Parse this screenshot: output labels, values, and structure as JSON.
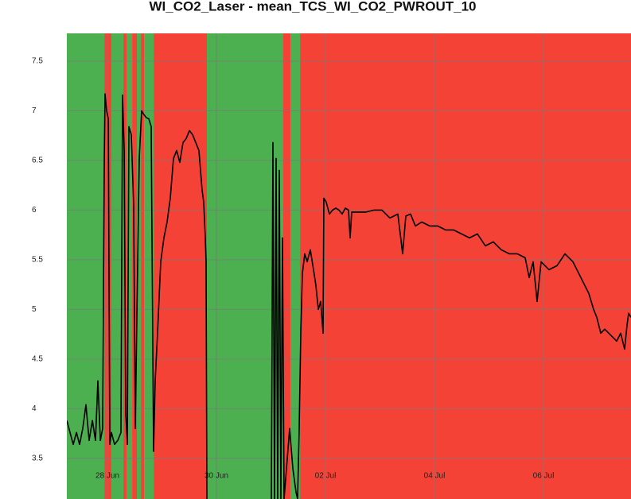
{
  "chart_data": {
    "type": "line",
    "title": "WI_CO2_Laser - mean_TCS_WI_CO2_PWROUT_10",
    "xlim": [
      -0.745,
      9.606
    ],
    "xticks": [
      {
        "value": 0,
        "label": "28 Jun"
      },
      {
        "value": 2,
        "label": "30 Jun"
      },
      {
        "value": 4,
        "label": "02 Jul"
      },
      {
        "value": 6,
        "label": "04 Jul"
      },
      {
        "value": 8,
        "label": "06 Jul"
      }
    ],
    "ylim": [
      3.09,
      7.78
    ],
    "yticks": [
      3.5,
      4,
      4.5,
      5,
      5.5,
      6,
      6.5,
      7,
      7.5
    ],
    "grid": true,
    "regions": [
      {
        "start": -0.745,
        "end": -0.058,
        "color": "#4caf50"
      },
      {
        "start": -0.058,
        "end": 0.073,
        "color": "#f44336"
      },
      {
        "start": 0.073,
        "end": 0.292,
        "color": "#4caf50"
      },
      {
        "start": 0.292,
        "end": 0.35,
        "color": "#f44336"
      },
      {
        "start": 0.35,
        "end": 0.453,
        "color": "#4caf50"
      },
      {
        "start": 0.453,
        "end": 0.54,
        "color": "#f44336"
      },
      {
        "start": 0.54,
        "end": 0.613,
        "color": "#4caf50"
      },
      {
        "start": 0.613,
        "end": 0.672,
        "color": "#f44336"
      },
      {
        "start": 0.672,
        "end": 0.847,
        "color": "#4caf50"
      },
      {
        "start": 0.847,
        "end": 1.825,
        "color": "#f44336"
      },
      {
        "start": 1.825,
        "end": 3.226,
        "color": "#4caf50"
      },
      {
        "start": 3.226,
        "end": 3.358,
        "color": "#f44336"
      },
      {
        "start": 3.358,
        "end": 3.533,
        "color": "#4caf50"
      },
      {
        "start": 3.533,
        "end": 9.606,
        "color": "#f44336"
      }
    ],
    "series": [
      {
        "color": "#000000",
        "x": [
          -0.745,
          -0.686,
          -0.628,
          -0.569,
          -0.511,
          -0.453,
          -0.394,
          -0.336,
          -0.277,
          -0.219,
          -0.175,
          -0.131,
          -0.088,
          -0.058,
          -0.044,
          -0.015,
          0.015,
          0.044,
          0.073,
          0.131,
          0.19,
          0.248,
          0.277,
          0.307,
          0.336,
          0.365,
          0.394,
          0.438,
          0.482,
          0.511,
          0.54,
          0.584,
          0.628,
          0.672,
          0.715,
          0.759,
          0.803,
          0.847,
          0.876,
          0.92,
          0.978,
          1.036,
          1.095,
          1.153,
          1.212,
          1.27,
          1.328,
          1.387,
          1.445,
          1.504,
          1.562,
          1.62,
          1.679,
          1.737,
          1.766,
          1.796,
          1.81,
          1.825,
          2.4,
          3.007,
          3.036,
          3.066,
          3.095,
          3.124,
          3.153,
          3.182,
          3.212,
          3.241,
          3.343,
          3.401,
          3.46,
          3.489,
          3.518,
          3.547,
          3.577,
          3.62,
          3.664,
          3.723,
          3.781,
          3.825,
          3.869,
          3.912,
          3.956,
          3.971,
          4.015,
          4.073,
          4.131,
          4.19,
          4.248,
          4.307,
          4.365,
          4.423,
          4.453,
          4.482,
          4.599,
          4.745,
          4.891,
          5.036,
          5.109,
          5.182,
          5.328,
          5.416,
          5.474,
          5.562,
          5.65,
          5.766,
          5.912,
          6.058,
          6.204,
          6.35,
          6.496,
          6.642,
          6.788,
          6.934,
          7.08,
          7.226,
          7.372,
          7.518,
          7.664,
          7.737,
          7.81,
          7.883,
          7.956,
          8.102,
          8.248,
          8.394,
          8.54,
          8.686,
          8.832,
          8.92,
          8.978,
          9.051,
          9.124,
          9.197,
          9.27,
          9.343,
          9.416,
          9.489,
          9.533,
          9.562,
          9.606
        ],
        "values": [
          3.88,
          3.76,
          3.64,
          3.76,
          3.64,
          3.8,
          4.04,
          3.68,
          3.88,
          3.68,
          4.28,
          3.68,
          3.8,
          6.52,
          7.17,
          7.0,
          6.92,
          3.64,
          3.76,
          3.64,
          3.68,
          3.76,
          7.16,
          6.6,
          3.96,
          3.64,
          6.84,
          6.76,
          6.04,
          3.8,
          4.92,
          6.52,
          7.0,
          6.96,
          6.93,
          6.92,
          6.84,
          3.57,
          4.28,
          4.76,
          5.48,
          5.72,
          5.88,
          6.12,
          6.52,
          6.6,
          6.48,
          6.68,
          6.72,
          6.8,
          6.76,
          6.68,
          6.6,
          6.2,
          6.08,
          5.72,
          5.48,
          3.09,
          null,
          3.09,
          6.68,
          3.09,
          6.52,
          3.09,
          6.4,
          3.09,
          5.72,
          3.09,
          3.8,
          3.4,
          3.16,
          3.09,
          3.8,
          4.76,
          5.36,
          5.56,
          5.48,
          5.6,
          5.4,
          5.24,
          5.0,
          5.08,
          4.76,
          6.12,
          6.08,
          5.96,
          6.0,
          6.02,
          6.0,
          5.96,
          6.02,
          6.0,
          5.72,
          5.98,
          5.98,
          5.98,
          6.0,
          6.0,
          5.96,
          5.92,
          5.96,
          5.56,
          5.94,
          5.96,
          5.84,
          5.88,
          5.84,
          5.84,
          5.8,
          5.8,
          5.76,
          5.72,
          5.76,
          5.64,
          5.68,
          5.6,
          5.56,
          5.56,
          5.52,
          5.32,
          5.48,
          5.08,
          5.48,
          5.4,
          5.44,
          5.56,
          5.48,
          5.32,
          5.16,
          5.0,
          4.92,
          4.76,
          4.8,
          4.76,
          4.72,
          4.68,
          4.76,
          4.6,
          4.84,
          4.96,
          4.92
        ]
      }
    ]
  }
}
